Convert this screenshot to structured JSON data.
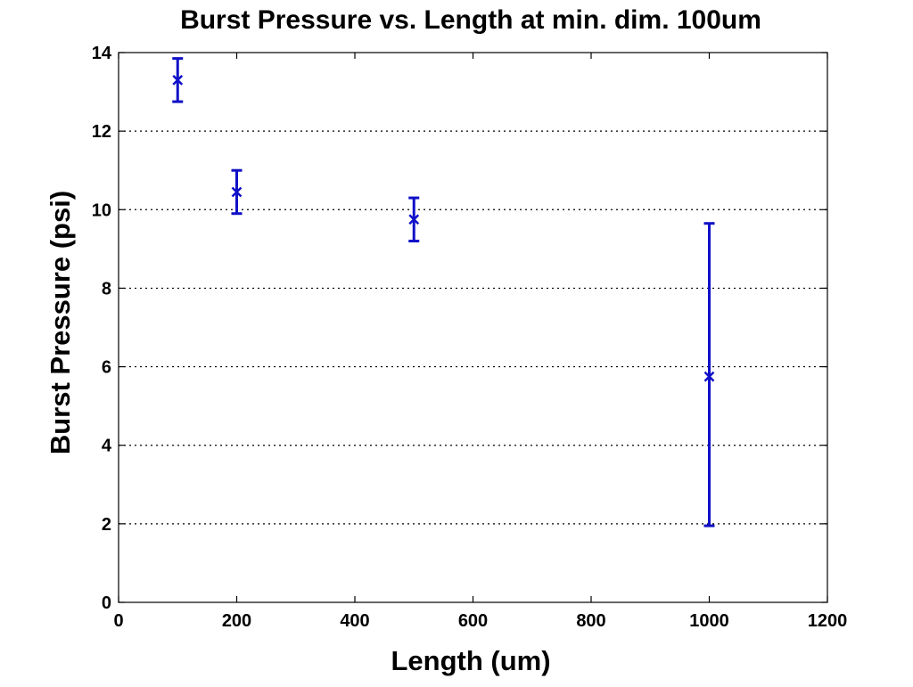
{
  "chart_data": {
    "type": "scatter",
    "title": "Burst Pressure vs. Length at min. dim. 100um",
    "xlabel": "Length (um)",
    "ylabel": "Burst Pressure (psi)",
    "xlim": [
      0,
      1200
    ],
    "ylim": [
      0,
      14
    ],
    "xticks": [
      "0",
      "200",
      "400",
      "600",
      "800",
      "1000",
      "1200"
    ],
    "yticks": [
      "0",
      "2",
      "4",
      "6",
      "8",
      "10",
      "12",
      "14"
    ],
    "grid": "horizontal dotted",
    "legend": "none",
    "series": [
      {
        "marker": "x",
        "color": "#1010c8",
        "points": [
          {
            "x": 100,
            "y": 13.3,
            "err_low": 12.75,
            "err_high": 13.85
          },
          {
            "x": 200,
            "y": 10.45,
            "err_low": 9.9,
            "err_high": 11.0
          },
          {
            "x": 500,
            "y": 9.75,
            "err_low": 9.2,
            "err_high": 10.3
          },
          {
            "x": 1000,
            "y": 5.75,
            "err_low": 1.95,
            "err_high": 9.65
          }
        ]
      }
    ]
  }
}
